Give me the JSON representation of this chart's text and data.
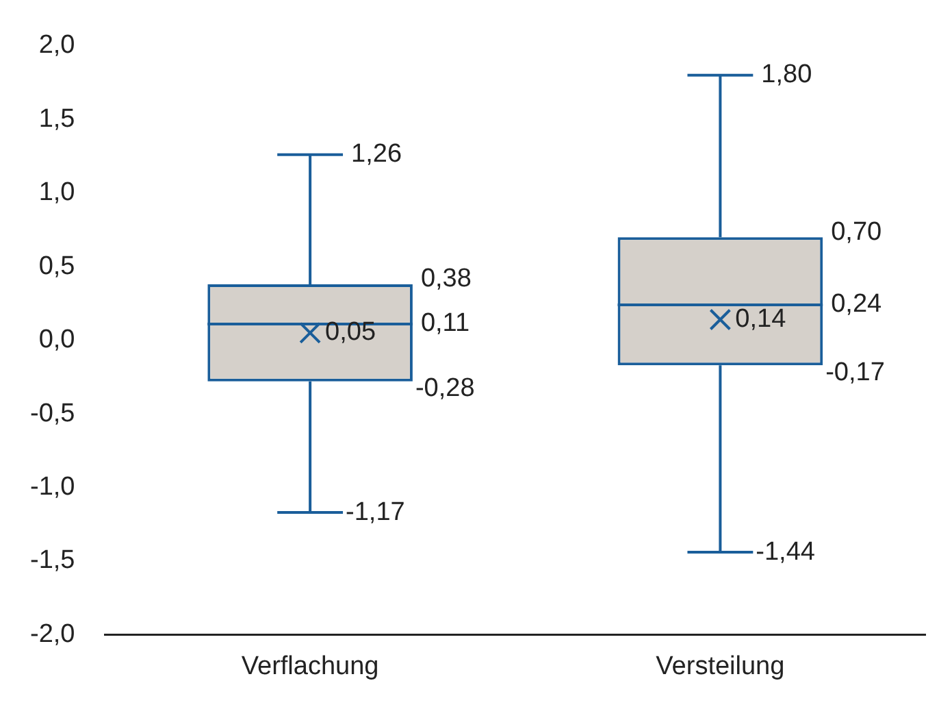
{
  "chart_data": {
    "type": "box",
    "categories": [
      "Verflachung",
      "Versteilung"
    ],
    "boxes": [
      {
        "low": -1.17,
        "q1": -0.28,
        "median": 0.11,
        "q3": 0.38,
        "high": 1.26,
        "mean": 0.05
      },
      {
        "low": -1.44,
        "q1": -0.17,
        "median": 0.24,
        "q3": 0.7,
        "high": 1.8,
        "mean": 0.14
      }
    ],
    "color": "#1a5e9a",
    "ylim": [
      -2,
      2
    ],
    "yticks": [
      {
        "value": -2,
        "label": "-2,0"
      },
      {
        "value": -1.5,
        "label": "-1,5"
      },
      {
        "value": -1,
        "label": "-1,0"
      },
      {
        "value": -0.5,
        "label": "-0,5"
      },
      {
        "value": 0,
        "label": "0,0"
      },
      {
        "value": 0.5,
        "label": "0,5"
      },
      {
        "value": 1,
        "label": "1,0"
      },
      {
        "value": 1.5,
        "label": "1,5"
      },
      {
        "value": 2,
        "label": "2,0"
      }
    ],
    "grid": false,
    "annotations": [
      "1,26",
      "0,38",
      "0,11",
      "0,05",
      "-0,28",
      "-1,17",
      "1,80",
      "0,70",
      "0,24",
      "0,14",
      "-0,17",
      "-1,44"
    ]
  }
}
